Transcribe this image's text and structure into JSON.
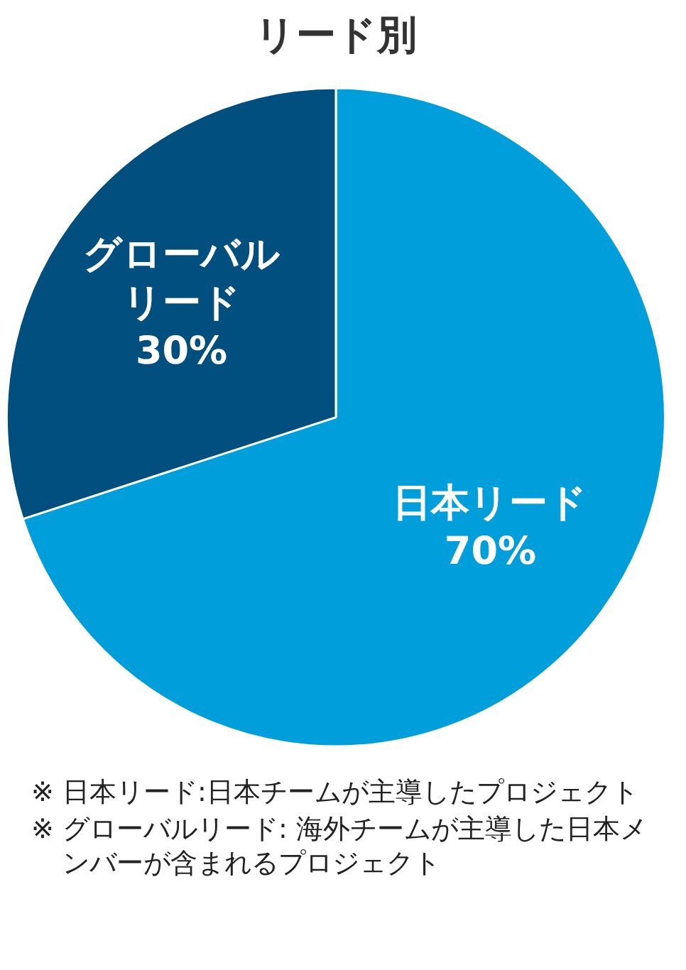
{
  "chart_data": {
    "type": "pie",
    "title": "リード別",
    "categories": [
      "日本リード",
      "グローバルリード"
    ],
    "values": [
      70,
      30
    ],
    "colors": [
      "#009edb",
      "#004f7f"
    ],
    "value_labels": [
      "70%",
      "30%"
    ],
    "legend": false,
    "annotations": [
      "※ 日本リード:日本チームが主導したプロジェクト",
      "※ グローバルリード: 海外チームが主導した日本メンバーが含まれるプロジェクト"
    ]
  }
}
